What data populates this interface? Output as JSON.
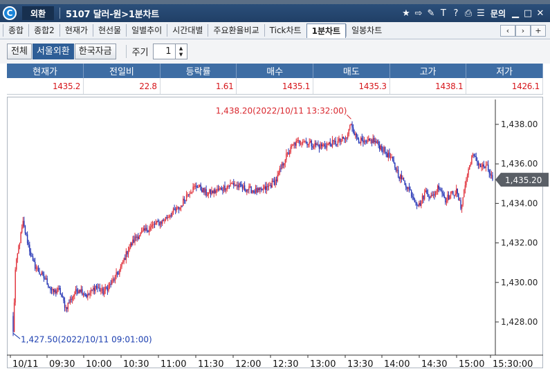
{
  "window": {
    "category": "외환",
    "title": "5107 달러-원>1분차트",
    "inquiry": "문의"
  },
  "tabs": [
    {
      "label": "종합"
    },
    {
      "label": "종합2"
    },
    {
      "label": "현재가"
    },
    {
      "label": "현선물"
    },
    {
      "label": "일별추이"
    },
    {
      "label": "시간대별"
    },
    {
      "label": "주요환율비교"
    },
    {
      "label": "Tick차트"
    },
    {
      "label": "1분차트",
      "active": true
    },
    {
      "label": "일봉차트"
    }
  ],
  "filters": {
    "buttons": [
      {
        "label": "전체"
      },
      {
        "label": "서울외환",
        "active": true
      },
      {
        "label": "한국자금"
      }
    ],
    "period_label": "주기",
    "period_value": "1"
  },
  "quote": {
    "headers": [
      "현재가",
      "전일비",
      "등락률",
      "매수",
      "매도",
      "고가",
      "저가"
    ],
    "values": [
      "1435.2",
      "22.8",
      "1.61",
      "1435.1",
      "1435.3",
      "1438.1",
      "1426.1"
    ]
  },
  "chart_data": {
    "type": "candlestick",
    "ylim": [
      1426.5,
      1438.9
    ],
    "y_ticks": [
      "1,438.00",
      "1,436.00",
      "1,434.00",
      "1,432.00",
      "1,430.00",
      "1,428.00"
    ],
    "y_tick_values": [
      1438,
      1436,
      1434,
      1432,
      1430,
      1428
    ],
    "x_ticks": [
      "10/11",
      "09:30",
      "10:00",
      "10:30",
      "11:00",
      "11:30",
      "12:00",
      "12:30",
      "13:00",
      "13:30",
      "14:00",
      "14:30",
      "15:00",
      "15:30:00"
    ],
    "current_value": 1435.2,
    "current_label": "1,435.20",
    "annotations": {
      "high": "1,438.20(2022/10/11 13:32:00)",
      "low": "1,427.50(2022/10/11 09:01:00)"
    },
    "anchors": [
      [
        0,
        1427.5
      ],
      [
        2,
        1430.6
      ],
      [
        5,
        1431.8
      ],
      [
        9,
        1433.0
      ],
      [
        13,
        1432.1
      ],
      [
        18,
        1431.0
      ],
      [
        24,
        1430.5
      ],
      [
        30,
        1430.1
      ],
      [
        36,
        1429.5
      ],
      [
        42,
        1429.6
      ],
      [
        48,
        1428.7
      ],
      [
        54,
        1429.3
      ],
      [
        60,
        1429.7
      ],
      [
        68,
        1429.3
      ],
      [
        75,
        1429.8
      ],
      [
        82,
        1429.5
      ],
      [
        90,
        1430.0
      ],
      [
        97,
        1430.6
      ],
      [
        105,
        1431.7
      ],
      [
        112,
        1432.3
      ],
      [
        120,
        1432.6
      ],
      [
        128,
        1432.9
      ],
      [
        136,
        1433.1
      ],
      [
        144,
        1433.5
      ],
      [
        152,
        1433.8
      ],
      [
        160,
        1434.6
      ],
      [
        168,
        1434.9
      ],
      [
        176,
        1434.5
      ],
      [
        184,
        1434.6
      ],
      [
        192,
        1434.8
      ],
      [
        200,
        1435.0
      ],
      [
        208,
        1434.8
      ],
      [
        216,
        1434.7
      ],
      [
        224,
        1434.6
      ],
      [
        232,
        1434.8
      ],
      [
        240,
        1435.2
      ],
      [
        248,
        1436.3
      ],
      [
        256,
        1437.0
      ],
      [
        264,
        1437.2
      ],
      [
        272,
        1437.0
      ],
      [
        280,
        1436.9
      ],
      [
        288,
        1437.0
      ],
      [
        296,
        1437.1
      ],
      [
        304,
        1437.3
      ],
      [
        308,
        1438.1
      ],
      [
        312,
        1437.4
      ],
      [
        320,
        1437.0
      ],
      [
        328,
        1437.2
      ],
      [
        336,
        1436.8
      ],
      [
        344,
        1436.3
      ],
      [
        352,
        1435.4
      ],
      [
        360,
        1434.8
      ],
      [
        366,
        1434.2
      ],
      [
        370,
        1433.9
      ],
      [
        376,
        1434.6
      ],
      [
        382,
        1434.3
      ],
      [
        388,
        1434.9
      ],
      [
        394,
        1434.2
      ],
      [
        400,
        1434.5
      ],
      [
        404,
        1434.6
      ],
      [
        408,
        1433.8
      ],
      [
        413,
        1435.2
      ],
      [
        418,
        1436.4
      ],
      [
        422,
        1436.2
      ],
      [
        426,
        1435.9
      ],
      [
        432,
        1435.8
      ],
      [
        437,
        1435.2
      ]
    ],
    "colors": {
      "up": "#e0303a",
      "down": "#2232b4",
      "high_note": "#d9272e",
      "low_note": "#1c3fb0",
      "current_tag": "#5a5f66"
    }
  },
  "colors": {
    "header_bg": "#3e6da4",
    "titlebar": "#2b4f7a",
    "value_text": "#d6161b"
  }
}
